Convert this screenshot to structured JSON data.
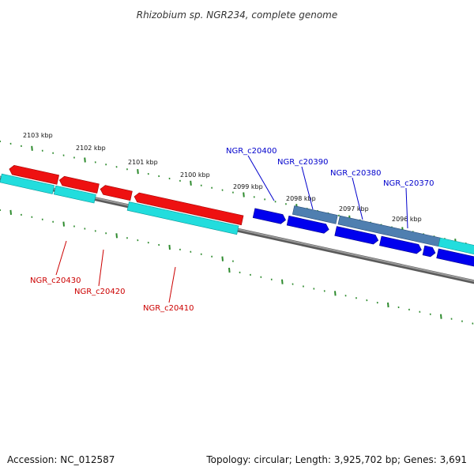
{
  "title": "Rhizobium sp. NGR234, complete genome",
  "accession": "Accession: NC_012587",
  "topology": "Topology: circular; Length: 3,925,702 bp; Genes: 3,691",
  "colors": {
    "backbone": "#7a7a7a",
    "tick": "#2e8b2e",
    "cds_red": "#ee1111",
    "cds_cyan": "#22dddd",
    "cds_blue": "#0000ee",
    "cds_steel": "#4f7fb0",
    "label_red": "#cc0000",
    "label_blue": "#0000cc"
  },
  "scale_labels": [
    "2103 kbp",
    "2102 kbp",
    "2101 kbp",
    "2100 kbp",
    "2099 kbp",
    "2098 kbp",
    "2097 kbp",
    "2096 kbp"
  ],
  "gene_labels": {
    "left": [
      "NGR_c20430",
      "NGR_c20420",
      "NGR_c20410"
    ],
    "right": [
      "NGR_c20400",
      "NGR_c20390",
      "NGR_c20380",
      "NGR_c20370"
    ]
  }
}
